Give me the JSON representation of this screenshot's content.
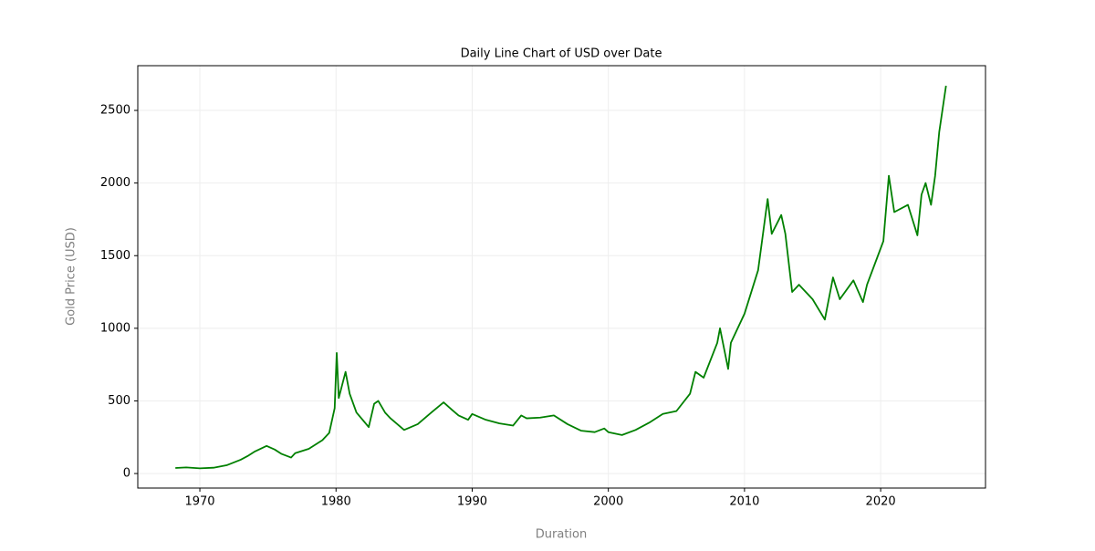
{
  "chart_data": {
    "type": "line",
    "title": "Daily Line Chart of USD over Date",
    "x_label": "Duration",
    "y_label": "Gold Price (USD)",
    "x": [
      1968.2,
      1969,
      1970,
      1971,
      1972,
      1973,
      1973.5,
      1974,
      1974.9,
      1975.5,
      1976,
      1976.7,
      1977,
      1978,
      1979,
      1979.5,
      1979.9,
      1980.05,
      1980.2,
      1980.7,
      1981,
      1981.5,
      1982.4,
      1982.8,
      1983.1,
      1983.6,
      1984,
      1985,
      1986,
      1987,
      1987.9,
      1988.5,
      1989,
      1989.7,
      1990,
      1991,
      1992,
      1993,
      1993.6,
      1994,
      1995,
      1996,
      1997,
      1998,
      1999,
      1999.7,
      2000,
      2001,
      2002,
      2003,
      2004,
      2005,
      2006,
      2006.4,
      2007,
      2008,
      2008.2,
      2008.8,
      2009,
      2010,
      2011,
      2011.7,
      2012,
      2012.7,
      2013,
      2013.5,
      2014,
      2015,
      2015.9,
      2016.5,
      2017,
      2018,
      2018.7,
      2019,
      2019.8,
      2020.2,
      2020.6,
      2021,
      2022,
      2022.7,
      2023,
      2023.3,
      2023.7,
      2024,
      2024.3,
      2024.8
    ],
    "series": [
      {
        "name": "USD",
        "color": "#008000",
        "values": [
          38,
          42,
          36,
          40,
          58,
          95,
          120,
          150,
          190,
          165,
          135,
          110,
          140,
          170,
          230,
          280,
          450,
          830,
          520,
          700,
          550,
          420,
          320,
          480,
          500,
          420,
          380,
          300,
          340,
          420,
          490,
          440,
          400,
          370,
          410,
          370,
          345,
          330,
          400,
          380,
          385,
          400,
          340,
          295,
          285,
          310,
          285,
          265,
          300,
          350,
          410,
          430,
          550,
          700,
          660,
          900,
          1000,
          720,
          900,
          1100,
          1400,
          1890,
          1650,
          1780,
          1650,
          1250,
          1300,
          1200,
          1060,
          1350,
          1200,
          1330,
          1180,
          1300,
          1500,
          1600,
          2050,
          1800,
          1850,
          1640,
          1920,
          2000,
          1850,
          2050,
          2350,
          2670
        ]
      }
    ],
    "xlim": [
      1965.44,
      2027.7
    ],
    "xticks": [
      1970,
      1980,
      1990,
      2000,
      2010,
      2020
    ],
    "ylim": [
      -100,
      2808
    ],
    "yticks": [
      0,
      500,
      1000,
      1500,
      2000,
      2500
    ],
    "grid": true
  }
}
